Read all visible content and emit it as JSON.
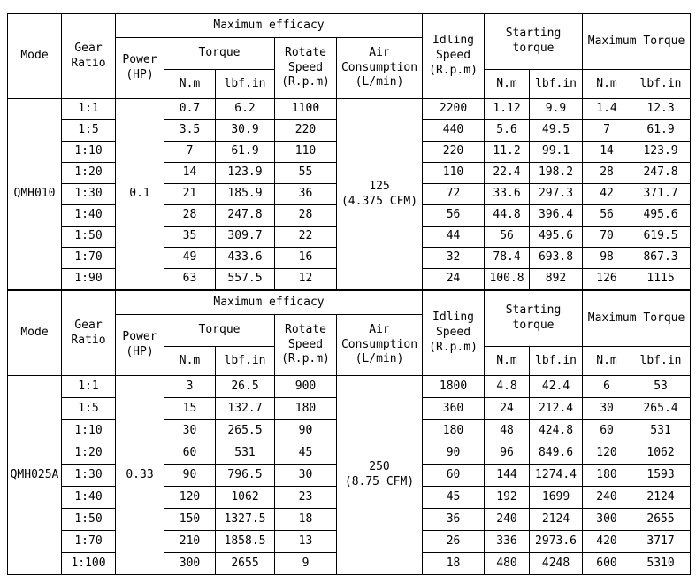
{
  "header": {
    "mode": "Mode",
    "gear_ratio": "Gear\nRatio",
    "max_efficacy": "Maximum efficacy",
    "power": "Power\n(HP)",
    "torque": "Torque",
    "nm": "N.m",
    "lbf_in": "lbf.in",
    "rotate_speed": "Rotate\nSpeed\n(R.p.m)",
    "air_consumption": "Air\nConsumption\n(L/min)",
    "idling_speed": "Idling\nSpeed\n(R.p.m)",
    "starting_torque": "Starting\ntorque",
    "maximum_torque": "Maximum Torque"
  },
  "row_columns": [
    "gear_ratio",
    "torque_nm",
    "torque_lbf_in",
    "rotate_speed_rpm",
    "idling_speed_rpm",
    "starting_torque_nm",
    "starting_torque_lbf_in",
    "maximum_torque_nm",
    "maximum_torque_lbf_in"
  ],
  "tables": [
    {
      "mode": "QMH010",
      "power_hp": "0.1",
      "air_consumption": "125\n(4.375 CFM)",
      "rows": [
        [
          "1:1",
          "0.7",
          "6.2",
          "1100",
          "2200",
          "1.12",
          "9.9",
          "1.4",
          "12.3"
        ],
        [
          "1:5",
          "3.5",
          "30.9",
          "220",
          "440",
          "5.6",
          "49.5",
          "7",
          "61.9"
        ],
        [
          "1:10",
          "7",
          "61.9",
          "110",
          "220",
          "11.2",
          "99.1",
          "14",
          "123.9"
        ],
        [
          "1:20",
          "14",
          "123.9",
          "55",
          "110",
          "22.4",
          "198.2",
          "28",
          "247.8"
        ],
        [
          "1:30",
          "21",
          "185.9",
          "36",
          "72",
          "33.6",
          "297.3",
          "42",
          "371.7"
        ],
        [
          "1:40",
          "28",
          "247.8",
          "28",
          "56",
          "44.8",
          "396.4",
          "56",
          "495.6"
        ],
        [
          "1:50",
          "35",
          "309.7",
          "22",
          "44",
          "56",
          "495.6",
          "70",
          "619.5"
        ],
        [
          "1:70",
          "49",
          "433.6",
          "16",
          "32",
          "78.4",
          "693.8",
          "98",
          "867.3"
        ],
        [
          "1:90",
          "63",
          "557.5",
          "12",
          "24",
          "100.8",
          "892",
          "126",
          "1115"
        ]
      ]
    },
    {
      "mode": "QMH025A",
      "power_hp": "0.33",
      "air_consumption": "250\n(8.75 CFM)",
      "rows": [
        [
          "1:1",
          "3",
          "26.5",
          "900",
          "1800",
          "4.8",
          "42.4",
          "6",
          "53"
        ],
        [
          "1:5",
          "15",
          "132.7",
          "180",
          "360",
          "24",
          "212.4",
          "30",
          "265.4"
        ],
        [
          "1:10",
          "30",
          "265.5",
          "90",
          "180",
          "48",
          "424.8",
          "60",
          "531"
        ],
        [
          "1:20",
          "60",
          "531",
          "45",
          "90",
          "96",
          "849.6",
          "120",
          "1062"
        ],
        [
          "1:30",
          "90",
          "796.5",
          "30",
          "60",
          "144",
          "1274.4",
          "180",
          "1593"
        ],
        [
          "1:40",
          "120",
          "1062",
          "23",
          "45",
          "192",
          "1699",
          "240",
          "2124"
        ],
        [
          "1:50",
          "150",
          "1327.5",
          "18",
          "36",
          "240",
          "2124",
          "300",
          "2655"
        ],
        [
          "1:70",
          "210",
          "1858.5",
          "13",
          "26",
          "336",
          "2973.6",
          "420",
          "3717"
        ],
        [
          "1:100",
          "300",
          "2655",
          "9",
          "18",
          "480",
          "4248",
          "600",
          "5310"
        ]
      ]
    }
  ],
  "colors": {
    "border": "#000000",
    "background": "#ffffff",
    "text": "#000000"
  }
}
